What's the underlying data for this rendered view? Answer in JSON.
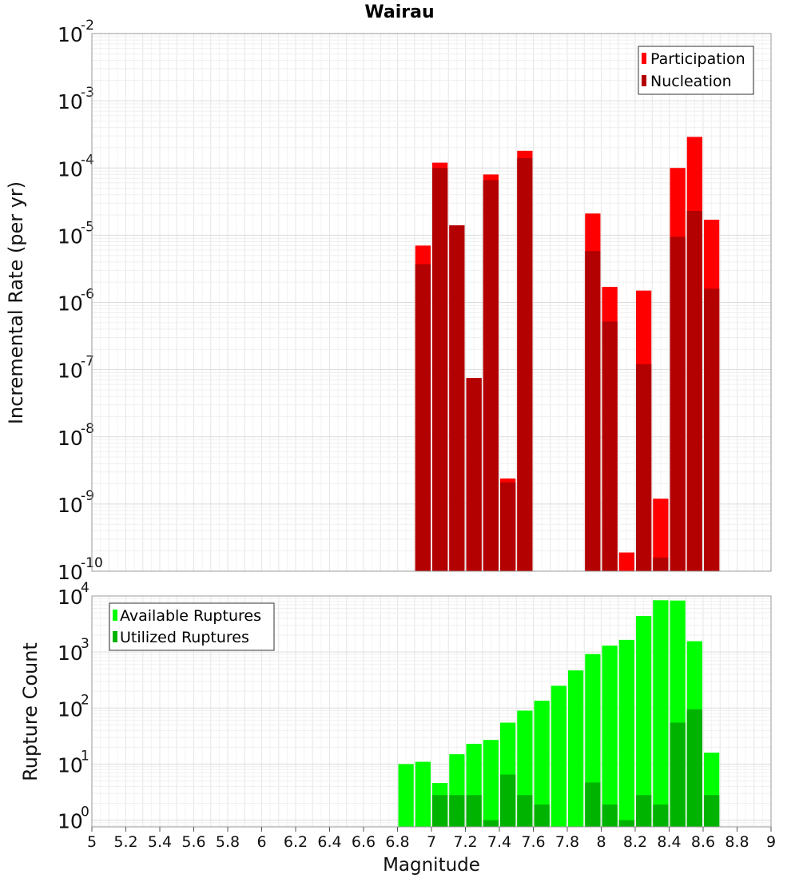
{
  "chart_data": {
    "title": "Wairau",
    "xlabel": "Magnitude",
    "xlim": [
      5,
      9
    ],
    "bin_width": 0.1,
    "xticks": [
      "5",
      "5.2",
      "5.4",
      "5.6",
      "5.8",
      "6",
      "6.2",
      "6.4",
      "6.6",
      "6.8",
      "7",
      "7.2",
      "7.4",
      "7.6",
      "7.8",
      "8",
      "8.2",
      "8.4",
      "8.6",
      "8.8",
      "9"
    ],
    "panels": [
      {
        "type": "bar",
        "scale": "log",
        "ylabel": "Incremental Rate (per yr)",
        "ylim_exp": [
          -10,
          -2
        ],
        "yticks": [
          {
            "base": "10",
            "exp": "-2"
          },
          {
            "base": "10",
            "exp": "-3"
          },
          {
            "base": "10",
            "exp": "-4"
          },
          {
            "base": "10",
            "exp": "-5"
          },
          {
            "base": "10",
            "exp": "-6"
          },
          {
            "base": "10",
            "exp": "-7"
          },
          {
            "base": "10",
            "exp": "-8"
          },
          {
            "base": "10",
            "exp": "-9"
          },
          {
            "base": "10",
            "exp": "-10"
          }
        ],
        "legend": {
          "position": "top-right"
        },
        "series": [
          {
            "name": "Participation",
            "color": "#ff0000",
            "x": [
              7.0,
              7.1,
              7.2,
              7.3,
              7.4,
              7.5,
              7.6,
              8.0,
              8.1,
              8.2,
              8.3,
              8.4,
              8.5,
              8.6,
              8.7
            ],
            "values": [
              7e-06,
              0.00012,
              1.4e-05,
              7.5e-08,
              8e-05,
              2.4e-09,
              0.00018,
              2.1e-05,
              1.7e-06,
              1.9e-10,
              1.5e-06,
              1.2e-09,
              0.0001,
              0.00029,
              1.7e-05
            ]
          },
          {
            "name": "Nucleation",
            "color": "#b30000",
            "x": [
              7.0,
              7.1,
              7.2,
              7.3,
              7.4,
              7.5,
              7.6,
              8.0,
              8.1,
              8.2,
              8.3,
              8.4,
              8.5,
              8.6,
              8.7
            ],
            "values": [
              3.7e-06,
              0.0001,
              1.4e-05,
              7.5e-08,
              6.6e-05,
              2.1e-09,
              0.00014,
              5.8e-06,
              5.2e-07,
              null,
              1.2e-07,
              1.6e-10,
              9.5e-06,
              2.3e-05,
              1.6e-06
            ]
          }
        ]
      },
      {
        "type": "bar",
        "scale": "log",
        "ylabel": "Rupture Count",
        "ylim_exp": [
          -0.12,
          4
        ],
        "yticks": [
          {
            "base": "10",
            "exp": "0"
          },
          {
            "base": "10",
            "exp": "1"
          },
          {
            "base": "10",
            "exp": "2"
          },
          {
            "base": "10",
            "exp": "3"
          },
          {
            "base": "10",
            "exp": "4"
          }
        ],
        "legend": {
          "position": "top-left"
        },
        "series": [
          {
            "name": "Available Ruptures",
            "color": "#00ff00",
            "x": [
              6.9,
              7.0,
              7.1,
              7.2,
              7.3,
              7.4,
              7.5,
              7.6,
              7.7,
              7.8,
              7.9,
              8.0,
              8.1,
              8.2,
              8.3,
              8.4,
              8.5,
              8.6,
              8.7
            ],
            "values": [
              10,
              11,
              4.6,
              15,
              23,
              27,
              55,
              90,
              135,
              250,
              470,
              920,
              1300,
              1650,
              4400,
              8400,
              8300,
              1560,
              16
            ]
          },
          {
            "name": "Utilized Ruptures",
            "color": "#00b300",
            "x": [
              7.1,
              7.2,
              7.3,
              7.4,
              7.5,
              7.6,
              7.7,
              8.0,
              8.1,
              8.2,
              8.3,
              8.4,
              8.5,
              8.6,
              8.7
            ],
            "values": [
              2.8,
              2.8,
              2.8,
              1,
              6.5,
              2.8,
              1.9,
              4.7,
              1.9,
              1,
              2.8,
              1.9,
              55,
              95,
              2.8
            ]
          }
        ]
      }
    ]
  }
}
